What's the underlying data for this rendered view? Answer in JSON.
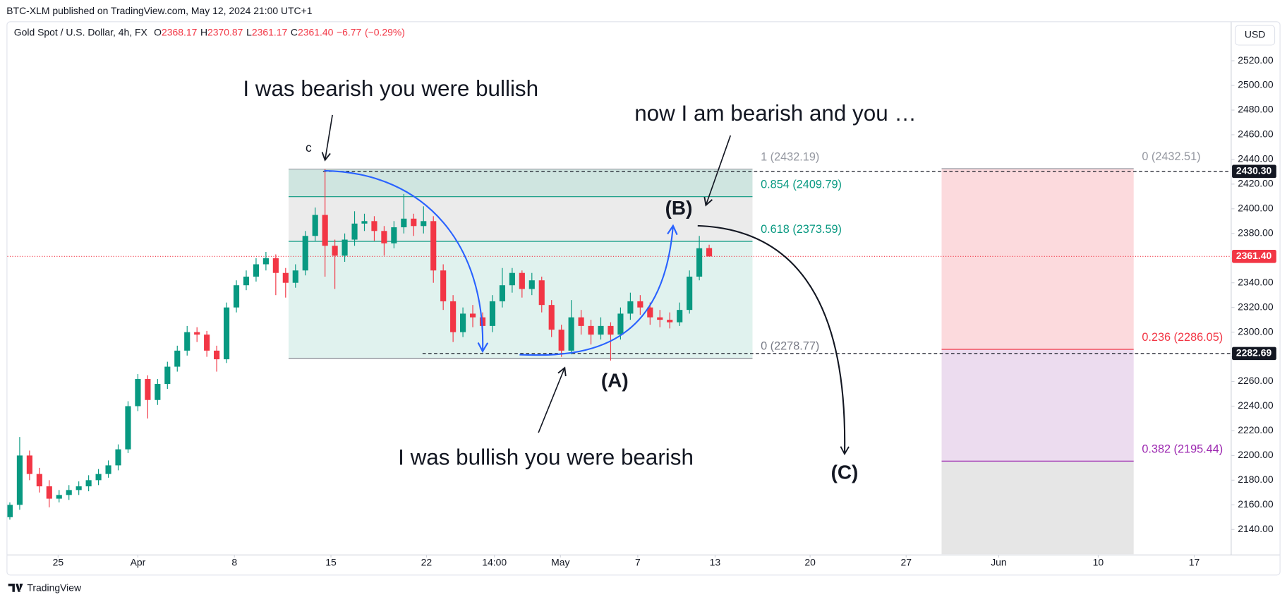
{
  "header": {
    "publisher": "BTC-XLM published on TradingView.com, May 12, 2024 21:00 UTC+1",
    "logo": "TradingView"
  },
  "chart_data": {
    "type": "candlestick",
    "symbol": "Gold Spot / U.S. Dollar, 4h, FX",
    "currency": "USD",
    "legend": {
      "keys": [
        "O",
        "H",
        "L",
        "C"
      ],
      "values": [
        {
          "value": 2368.17,
          "label": "2368.17"
        },
        {
          "value": 2370.87,
          "label": "2370.87"
        },
        {
          "value": 2361.17,
          "label": "2361.17"
        },
        {
          "value": 2361.4,
          "label": "2361.40"
        }
      ],
      "change": {
        "value": -6.77,
        "label": "−6.77"
      },
      "change_pct": {
        "value": -0.29,
        "label": "(−0.29%)"
      }
    },
    "colors": {
      "up": "#089981",
      "down": "#f23645"
    },
    "ohlc": [
      [
        2150,
        2162,
        2148,
        2160
      ],
      [
        2160,
        2215,
        2156,
        2200
      ],
      [
        2200,
        2204,
        2180,
        2185
      ],
      [
        2185,
        2190,
        2170,
        2175
      ],
      [
        2175,
        2180,
        2158,
        2165
      ],
      [
        2165,
        2172,
        2162,
        2168
      ],
      [
        2168,
        2176,
        2164,
        2172
      ],
      [
        2172,
        2179,
        2168,
        2175
      ],
      [
        2175,
        2184,
        2171,
        2180
      ],
      [
        2180,
        2189,
        2176,
        2185
      ],
      [
        2185,
        2196,
        2182,
        2192
      ],
      [
        2192,
        2209,
        2188,
        2205
      ],
      [
        2205,
        2244,
        2202,
        2240
      ],
      [
        2240,
        2266,
        2236,
        2262
      ],
      [
        2262,
        2265,
        2230,
        2245
      ],
      [
        2245,
        2262,
        2241,
        2258
      ],
      [
        2258,
        2276,
        2254,
        2272
      ],
      [
        2272,
        2289,
        2268,
        2285
      ],
      [
        2285,
        2305,
        2281,
        2300
      ],
      [
        2300,
        2304,
        2292,
        2298
      ],
      [
        2298,
        2301,
        2280,
        2285
      ],
      [
        2285,
        2289,
        2268,
        2278
      ],
      [
        2278,
        2324,
        2275,
        2320
      ],
      [
        2320,
        2342,
        2316,
        2338
      ],
      [
        2338,
        2350,
        2334,
        2345
      ],
      [
        2345,
        2360,
        2341,
        2355
      ],
      [
        2355,
        2365,
        2350,
        2360
      ],
      [
        2360,
        2363,
        2330,
        2348
      ],
      [
        2348,
        2352,
        2328,
        2340
      ],
      [
        2340,
        2355,
        2336,
        2350
      ],
      [
        2350,
        2382,
        2346,
        2378
      ],
      [
        2378,
        2401,
        2374,
        2395
      ],
      [
        2395,
        2432.19,
        2345,
        2370
      ],
      [
        2370,
        2375,
        2335,
        2362
      ],
      [
        2362,
        2380,
        2357,
        2375
      ],
      [
        2375,
        2398,
        2370,
        2388
      ],
      [
        2388,
        2396,
        2382,
        2390
      ],
      [
        2390,
        2394,
        2374,
        2382
      ],
      [
        2382,
        2386,
        2362,
        2372
      ],
      [
        2372,
        2390,
        2368,
        2385
      ],
      [
        2385,
        2412,
        2380,
        2392
      ],
      [
        2392,
        2396,
        2378,
        2386
      ],
      [
        2386,
        2402,
        2380,
        2390
      ],
      [
        2390,
        2394,
        2340,
        2350
      ],
      [
        2350,
        2355,
        2318,
        2325
      ],
      [
        2325,
        2330,
        2292,
        2300
      ],
      [
        2300,
        2320,
        2296,
        2315
      ],
      [
        2315,
        2322,
        2304,
        2312
      ],
      [
        2312,
        2316,
        2298,
        2305
      ],
      [
        2305,
        2330,
        2300,
        2325
      ],
      [
        2325,
        2352,
        2320,
        2338
      ],
      [
        2338,
        2352,
        2332,
        2348
      ],
      [
        2348,
        2350,
        2328,
        2335
      ],
      [
        2335,
        2348,
        2330,
        2342
      ],
      [
        2342,
        2345,
        2316,
        2322
      ],
      [
        2322,
        2326,
        2296,
        2302
      ],
      [
        2302,
        2306,
        2280,
        2285
      ],
      [
        2285,
        2326,
        2282,
        2312
      ],
      [
        2312,
        2318,
        2298,
        2305
      ],
      [
        2305,
        2310,
        2290,
        2298
      ],
      [
        2298,
        2312,
        2294,
        2305
      ],
      [
        2305,
        2308,
        2277,
        2298
      ],
      [
        2298,
        2320,
        2294,
        2315
      ],
      [
        2315,
        2332,
        2310,
        2325
      ],
      [
        2325,
        2330,
        2314,
        2320
      ],
      [
        2320,
        2324,
        2306,
        2312
      ],
      [
        2312,
        2318,
        2304,
        2310
      ],
      [
        2310,
        2316,
        2303,
        2308
      ],
      [
        2308,
        2324,
        2305,
        2318
      ],
      [
        2318,
        2350,
        2315,
        2345
      ],
      [
        2345,
        2378,
        2342,
        2368
      ],
      [
        2368.17,
        2370.87,
        2361.17,
        2361.4
      ]
    ],
    "xlim": [
      0,
      124
    ],
    "xticks": [
      {
        "value": 4.9,
        "label": "25"
      },
      {
        "value": 13,
        "label": "Apr"
      },
      {
        "value": 22.8,
        "label": "8"
      },
      {
        "value": 32.6,
        "label": "15"
      },
      {
        "value": 42.3,
        "label": "22"
      },
      {
        "value": 49.2,
        "label": "14:00"
      },
      {
        "value": 55.9,
        "label": "May"
      },
      {
        "value": 63.75,
        "label": "7"
      },
      {
        "value": 71.6,
        "label": "13"
      },
      {
        "value": 81.25,
        "label": "20"
      },
      {
        "value": 91,
        "label": "27"
      },
      {
        "value": 100.4,
        "label": "Jun"
      },
      {
        "value": 110.5,
        "label": "10"
      },
      {
        "value": 120.25,
        "label": "17"
      }
    ],
    "ylim": [
      2120,
      2550
    ],
    "yticks": [
      {
        "value": 2140,
        "label": "2140.00"
      },
      {
        "value": 2160,
        "label": "2160.00"
      },
      {
        "value": 2180,
        "label": "2180.00"
      },
      {
        "value": 2200,
        "label": "2200.00"
      },
      {
        "value": 2220,
        "label": "2220.00"
      },
      {
        "value": 2240,
        "label": "2240.00"
      },
      {
        "value": 2260,
        "label": "2260.00"
      },
      {
        "value": 2280,
        "label": "2280.00"
      },
      {
        "value": 2300,
        "label": "2300.00"
      },
      {
        "value": 2320,
        "label": "2320.00"
      },
      {
        "value": 2340,
        "label": "2340.00"
      },
      {
        "value": 2360,
        "label": "2360.00"
      },
      {
        "value": 2380,
        "label": "2380.00"
      },
      {
        "value": 2400,
        "label": "2400.00"
      },
      {
        "value": 2420,
        "label": "2420.00"
      },
      {
        "value": 2440,
        "label": "2440.00"
      },
      {
        "value": 2460,
        "label": "2460.00"
      },
      {
        "value": 2480,
        "label": "2480.00"
      },
      {
        "value": 2500,
        "label": "2500.00"
      },
      {
        "value": 2520,
        "label": "2520.00"
      }
    ],
    "last_price": {
      "value": 2361.4,
      "label": "2361.40",
      "color": "#f23645"
    },
    "horizontal_lines": [
      {
        "value": 2430.3,
        "label": "2430.30",
        "start": 31.8
      },
      {
        "value": 2282.69,
        "label": "2282.69",
        "start": 41.9
      }
    ],
    "fib_retracements": [
      {
        "start": 28.3,
        "end": 75.4,
        "levels": [
          {
            "label": "1 (2432.19)",
            "value": 2432.19,
            "color": "#9598a1",
            "fill": "#cfe5e0"
          },
          {
            "label": "0.854 (2409.79)",
            "value": 2409.79,
            "color": "#089981",
            "fill": "#ebebeb"
          },
          {
            "label": "0.618 (2373.59)",
            "value": 2373.59,
            "color": "#089981",
            "fill": "#e0f2ee"
          },
          {
            "label": "0 (2278.77)",
            "value": 2278.77,
            "color": "#787b86"
          }
        ]
      },
      {
        "start": 94.6,
        "end": 114.1,
        "levels": [
          {
            "label": "0 (2432.51)",
            "value": 2432.51,
            "color": "#9598a1",
            "fill": "#fcdadd"
          },
          {
            "label": "0.236 (2286.05)",
            "value": 2286.05,
            "color": "#f23645",
            "fill": "#ecdcef"
          },
          {
            "label": "0.382 (2195.44)",
            "value": 2195.44,
            "color": "#9c27b0",
            "fill": "#e6e6e6"
          }
        ]
      }
    ],
    "annotations": {
      "top_left": "I was bearish you were bullish",
      "top_right": "now I am bearish and you  …",
      "bottom": "I was bullish you were bearish",
      "wave_a": "(A)",
      "wave_b": "(B)",
      "wave_c": "(C)",
      "small_c": "c"
    }
  }
}
